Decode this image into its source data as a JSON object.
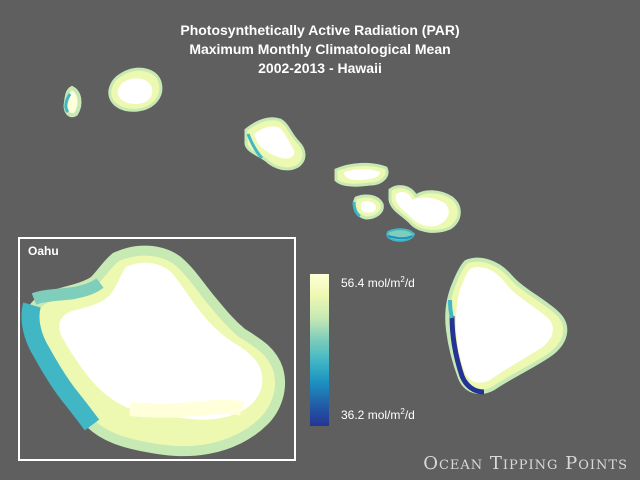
{
  "title": {
    "line1": "Photosynthetically Active Radiation (PAR)",
    "line2": "Maximum Monthly Climatological Mean",
    "line3": "2002-2013 - Hawaii"
  },
  "inset": {
    "label": "Oahu"
  },
  "colorbar": {
    "max_value": "56.4",
    "min_value": "36.2",
    "unit_prefix": "mol/m",
    "unit_exp": "2",
    "unit_suffix": "/d",
    "colors": [
      "#ffffd9",
      "#edf8b1",
      "#c7e9b4",
      "#7fcdbb",
      "#41b6c4",
      "#1d91c0",
      "#225ea8",
      "#253494"
    ]
  },
  "islands": [
    "Niihau",
    "Kauai",
    "Oahu",
    "Molokai",
    "Lanai",
    "Maui",
    "Kahoolawe",
    "Hawaii"
  ],
  "brand": "Ocean Tipping Points"
}
